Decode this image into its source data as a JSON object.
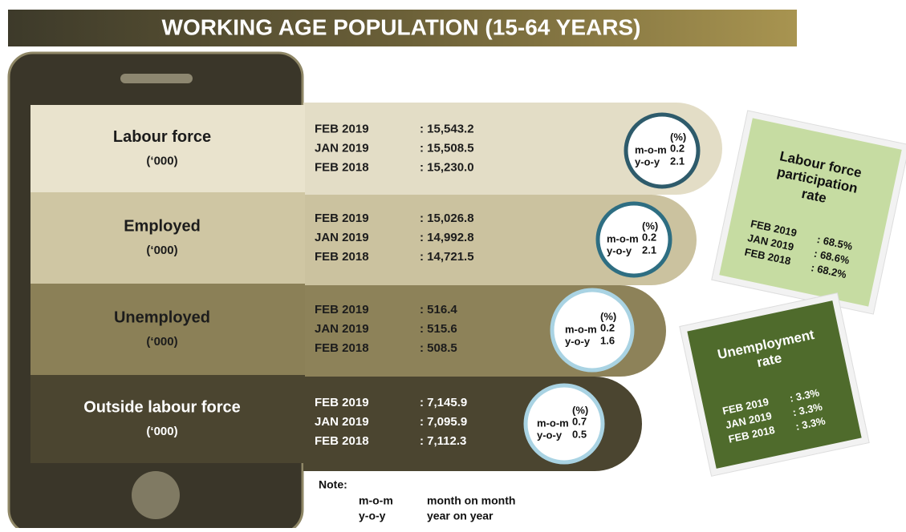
{
  "title": "WORKING AGE POPULATION (15-64 YEARS)",
  "rows": [
    {
      "label": "Labour force",
      "unit": "(‘000)",
      "entries": [
        {
          "period": "FEB 2019",
          "value": ": 15,543.2"
        },
        {
          "period": "JAN 2019",
          "value": ": 15,508.5"
        },
        {
          "period": "FEB 2018",
          "value": ": 15,230.0"
        }
      ],
      "pct": "(%)",
      "mom_label": "m-o-m",
      "mom": "0.2",
      "yoy_label": "y-o-y",
      "yoy": "2.1"
    },
    {
      "label": "Employed",
      "unit": "(‘000)",
      "entries": [
        {
          "period": "FEB 2019",
          "value": ": 15,026.8"
        },
        {
          "period": "JAN 2019",
          "value": ": 14,992.8"
        },
        {
          "period": "FEB 2018",
          "value": ": 14,721.5"
        }
      ],
      "pct": "(%)",
      "mom_label": "m-o-m",
      "mom": "0.2",
      "yoy_label": "y-o-y",
      "yoy": "2.1"
    },
    {
      "label": "Unemployed",
      "unit": "(‘000)",
      "entries": [
        {
          "period": "FEB 2019",
          "value": ": 516.4"
        },
        {
          "period": "JAN 2019",
          "value": ": 515.6"
        },
        {
          "period": "FEB 2018",
          "value": ": 508.5"
        }
      ],
      "pct": "(%)",
      "mom_label": "m-o-m",
      "mom": "0.2",
      "yoy_label": "y-o-y",
      "yoy": "1.6"
    },
    {
      "label": "Outside labour force",
      "unit": "(‘000)",
      "entries": [
        {
          "period": "FEB 2019",
          "value": ": 7,145.9"
        },
        {
          "period": "JAN 2019",
          "value": ": 7,095.9"
        },
        {
          "period": "FEB 2018",
          "value": ": 7,112.3"
        }
      ],
      "pct": "(%)",
      "mom_label": "m-o-m",
      "mom": "0.7",
      "yoy_label": "y-o-y",
      "yoy": "0.5"
    }
  ],
  "cards": [
    {
      "title": [
        "Labour force",
        "participation",
        "rate"
      ],
      "entries": [
        {
          "period": "FEB 2019",
          "value": ": 68.5%"
        },
        {
          "period": "JAN 2019",
          "value": ": 68.6%"
        },
        {
          "period": "FEB 2018",
          "value": ": 68.2%"
        }
      ]
    },
    {
      "title": [
        "Unemployment",
        "rate"
      ],
      "entries": [
        {
          "period": "FEB 2019",
          "value": ": 3.3%"
        },
        {
          "period": "JAN 2019",
          "value": ": 3.3%"
        },
        {
          "period": "FEB 2018",
          "value": ": 3.3%"
        }
      ]
    }
  ],
  "note": {
    "label": "Note:",
    "items": [
      {
        "abbr": "m-o-m",
        "text": "month on month"
      },
      {
        "abbr": "y-o-y",
        "text": "year on year"
      }
    ]
  }
}
